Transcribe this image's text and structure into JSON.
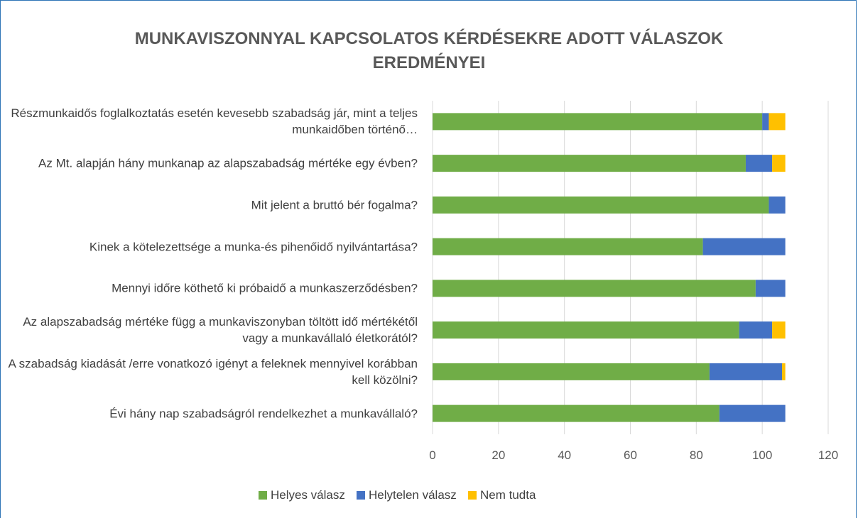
{
  "chart_data": {
    "type": "stacked-bar-horizontal",
    "title": "MUNKAVISZONNYAL KAPCSOLATOS KÉRDÉSEKRE ADOTT VÁLASZOK EREDMÉNYEI",
    "categories": [
      "Részmunkaidős foglalkoztatás esetén kevesebb szabadság jár, mint a teljes munkaidőben történő…",
      "Az Mt. alapján hány munkanap az alapszabadság mértéke egy évben?",
      "Mit jelent a bruttó bér fogalma?",
      "Kinek a kötelezettsége a munka-és pihenőidő nyilvántartása?",
      "Mennyi időre köthető ki próbaidő a munkaszerződésben?",
      "Az alapszabadság mértéke függ a munkaviszonyban töltött idő mértékétől vagy a munkavállaló életkorától?",
      "A szabadság kiadását /erre vonatkozó igényt a feleknek mennyivel korábban kell közölni?",
      "Évi hány nap szabadságról rendelkezhet a munkavállaló?"
    ],
    "series": [
      {
        "name": "Helyes válasz",
        "color": "#70ad47",
        "values": [
          100,
          95,
          102,
          82,
          98,
          93,
          84,
          87
        ]
      },
      {
        "name": "Helytelen válasz",
        "color": "#4472c4",
        "values": [
          2,
          8,
          5,
          25,
          9,
          10,
          22,
          20
        ]
      },
      {
        "name": "Nem tudta",
        "color": "#ffc000",
        "values": [
          5,
          4,
          0,
          0,
          0,
          4,
          1,
          0
        ]
      }
    ],
    "xlim": [
      0,
      120
    ],
    "xticks": [
      0,
      20,
      40,
      60,
      80,
      100,
      120
    ],
    "grid": true,
    "legend": "bottom"
  }
}
